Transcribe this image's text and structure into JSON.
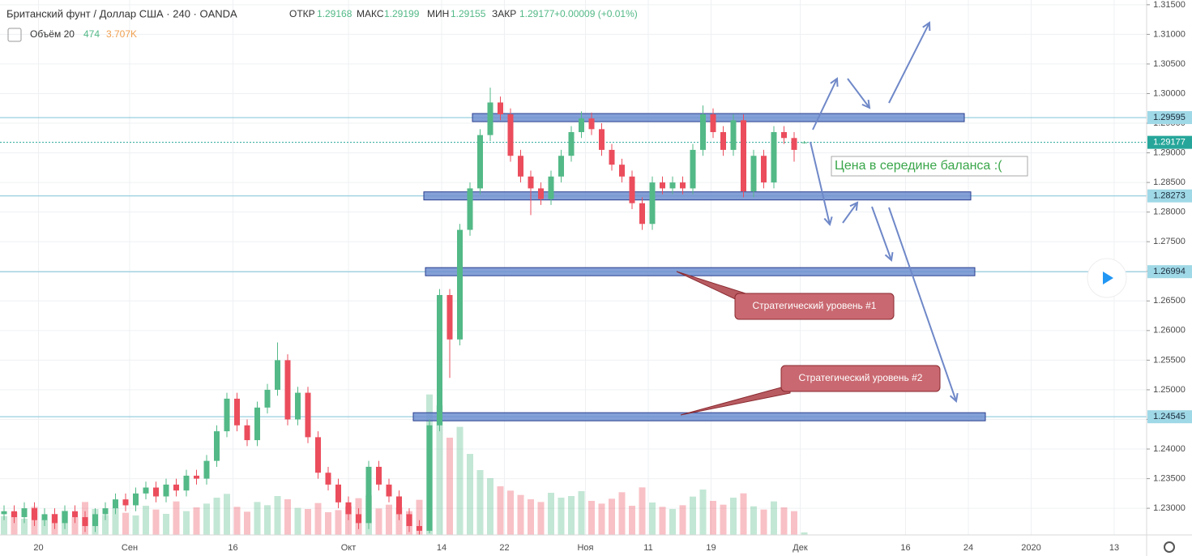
{
  "chart_data": {
    "type": "candlestick",
    "title": "Британский фунт / Доллар США · 240 · OANDA",
    "ohlc_labels": [
      "ОТКР",
      "МАКС",
      "МИН",
      "ЗАКР"
    ],
    "change_label": "+0.00009 (+0.01%)",
    "volume_title": "Объём 20",
    "volume_ma_label": "3.707K",
    "up_color": "#53b987",
    "down_color": "#eb4d5c",
    "xlim": [
      -0.4,
      112.8
    ],
    "xticks": [
      {
        "value": 3.4,
        "label": "20"
      },
      {
        "value": 12.4,
        "label": "Сен"
      },
      {
        "value": 22.6,
        "label": "16"
      },
      {
        "value": 34,
        "label": "Окт"
      },
      {
        "value": 43.2,
        "label": "14"
      },
      {
        "value": 49.4,
        "label": "22"
      },
      {
        "value": 57.4,
        "label": "Ноя"
      },
      {
        "value": 63.6,
        "label": "11"
      },
      {
        "value": 69.8,
        "label": "19"
      },
      {
        "value": 78.6,
        "label": "Дек"
      },
      {
        "value": 89,
        "label": "16"
      },
      {
        "value": 95.2,
        "label": "24"
      },
      {
        "value": 101.4,
        "label": "2020"
      },
      {
        "value": 109.6,
        "label": "13"
      }
    ],
    "ylim": [
      1.2255,
      1.3158
    ],
    "yticks": [
      {
        "value": 1.23,
        "label": "1.23000"
      },
      {
        "value": 1.235,
        "label": "1.23500"
      },
      {
        "value": 1.24,
        "label": "1.24000"
      },
      {
        "value": 1.245,
        "label": "1.24500"
      },
      {
        "value": 1.25,
        "label": "1.25000"
      },
      {
        "value": 1.255,
        "label": "1.25500"
      },
      {
        "value": 1.26,
        "label": "1.26000"
      },
      {
        "value": 1.265,
        "label": "1.26500"
      },
      {
        "value": 1.27,
        "label": "1.27000"
      },
      {
        "value": 1.275,
        "label": "1.27500"
      },
      {
        "value": 1.28,
        "label": "1.28000"
      },
      {
        "value": 1.285,
        "label": "1.28500"
      },
      {
        "value": 1.29,
        "label": "1.29000"
      },
      {
        "value": 1.295,
        "label": "1.29500"
      },
      {
        "value": 1.3,
        "label": "1.30000"
      },
      {
        "value": 1.305,
        "label": "1.30500"
      },
      {
        "value": 1.31,
        "label": "1.31000"
      },
      {
        "value": 1.315,
        "label": "1.31500"
      }
    ],
    "vlim": [
      0,
      30000
    ],
    "levels": [
      1.29595,
      1.28273,
      1.26994,
      1.24545
    ],
    "annotations": [
      "Цена в середине баланса :(",
      "Стратегический уровень #1",
      "Стратегический уровень #2"
    ],
    "open": [
      1.229,
      1.2295,
      1.2285,
      1.23,
      1.228,
      1.229,
      1.2275,
      1.2295,
      1.2285,
      1.227,
      1.229,
      1.23,
      1.2315,
      1.2305,
      1.2325,
      1.2335,
      1.232,
      1.234,
      1.233,
      1.2355,
      1.235,
      1.238,
      1.243,
      1.2485,
      1.244,
      1.2415,
      1.247,
      1.25,
      1.255,
      1.245,
      1.2495,
      1.242,
      1.236,
      1.234,
      1.231,
      1.229,
      1.2275,
      1.237,
      1.234,
      1.232,
      1.229,
      1.227,
      1.2262,
      1.244,
      1.266,
      1.2585,
      1.277,
      1.284,
      1.293,
      1.2985,
      1.2965,
      1.2895,
      1.286,
      1.284,
      1.2822,
      1.286,
      1.2895,
      1.2935,
      1.2958,
      1.294,
      1.2905,
      1.288,
      1.286,
      1.2815,
      1.278,
      1.285,
      1.284,
      1.285,
      1.284,
      1.2905,
      1.2965,
      1.2935,
      1.2905,
      1.2955,
      1.2835,
      1.2895,
      1.285,
      1.2935,
      1.2925,
      1.29168
    ],
    "high": [
      1.2305,
      1.2305,
      1.231,
      1.231,
      1.23,
      1.23,
      1.2305,
      1.2305,
      1.2295,
      1.23,
      1.231,
      1.2325,
      1.2325,
      1.2335,
      1.2345,
      1.2345,
      1.235,
      1.235,
      1.2365,
      1.2365,
      1.239,
      1.244,
      1.2495,
      1.2495,
      1.245,
      1.248,
      1.251,
      1.258,
      1.256,
      1.2505,
      1.2505,
      1.243,
      1.237,
      1.235,
      1.232,
      1.23,
      1.238,
      1.238,
      1.235,
      1.233,
      1.23,
      1.228,
      1.245,
      1.267,
      1.267,
      1.278,
      1.285,
      1.294,
      1.301,
      1.2995,
      1.2975,
      1.2905,
      1.287,
      1.285,
      1.287,
      1.2905,
      1.2945,
      1.297,
      1.2968,
      1.295,
      1.2915,
      1.289,
      1.287,
      1.2825,
      1.286,
      1.286,
      1.286,
      1.286,
      1.2915,
      1.298,
      1.2975,
      1.2945,
      1.2965,
      1.2965,
      1.2905,
      1.2905,
      1.2945,
      1.2945,
      1.2935,
      1.29199
    ],
    "low": [
      1.228,
      1.2275,
      1.2275,
      1.227,
      1.227,
      1.2265,
      1.2265,
      1.2275,
      1.226,
      1.226,
      1.228,
      1.229,
      1.2295,
      1.2295,
      1.2315,
      1.231,
      1.231,
      1.232,
      1.232,
      1.234,
      1.234,
      1.237,
      1.242,
      1.243,
      1.2405,
      1.2405,
      1.246,
      1.249,
      1.244,
      1.244,
      1.241,
      1.235,
      1.233,
      1.23,
      1.228,
      1.2265,
      1.2265,
      1.233,
      1.231,
      1.228,
      1.226,
      1.2255,
      1.2258,
      1.243,
      1.252,
      1.2575,
      1.276,
      1.283,
      1.292,
      1.2955,
      1.2885,
      1.285,
      1.2795,
      1.2812,
      1.2812,
      1.285,
      1.2885,
      1.2925,
      1.293,
      1.2895,
      1.287,
      1.285,
      1.2805,
      1.277,
      1.277,
      1.283,
      1.283,
      1.283,
      1.283,
      1.2895,
      1.2925,
      1.2895,
      1.2895,
      1.2825,
      1.2825,
      1.284,
      1.284,
      1.2915,
      1.2885,
      1.29155
    ],
    "close": [
      1.2295,
      1.2285,
      1.23,
      1.228,
      1.229,
      1.2275,
      1.2295,
      1.2285,
      1.227,
      1.229,
      1.23,
      1.2315,
      1.2305,
      1.2325,
      1.2335,
      1.232,
      1.234,
      1.233,
      1.2355,
      1.235,
      1.238,
      1.243,
      1.2485,
      1.244,
      1.2415,
      1.247,
      1.25,
      1.255,
      1.245,
      1.2495,
      1.242,
      1.236,
      1.234,
      1.231,
      1.229,
      1.2275,
      1.237,
      1.234,
      1.232,
      1.229,
      1.227,
      1.2262,
      1.244,
      1.266,
      1.2585,
      1.277,
      1.284,
      1.293,
      1.2985,
      1.2965,
      1.2895,
      1.286,
      1.284,
      1.2822,
      1.286,
      1.2895,
      1.2935,
      1.2958,
      1.294,
      1.2905,
      1.288,
      1.286,
      1.2815,
      1.278,
      1.285,
      1.284,
      1.285,
      1.284,
      1.2905,
      1.2965,
      1.2935,
      1.2905,
      1.2955,
      1.2835,
      1.2895,
      1.285,
      1.2935,
      1.2925,
      1.2905,
      1.29177
    ],
    "volume": [
      3500,
      4200,
      3000,
      5200,
      2800,
      3900,
      4500,
      3300,
      6100,
      4800,
      3700,
      5000,
      4100,
      3600,
      5400,
      4700,
      3900,
      6200,
      4400,
      5100,
      5800,
      6900,
      7600,
      5200,
      4300,
      6100,
      5500,
      7200,
      6600,
      5000,
      4800,
      5900,
      4200,
      4600,
      5300,
      6800,
      7300,
      4900,
      5600,
      5100,
      4400,
      6500,
      26000,
      24000,
      18000,
      20000,
      15000,
      12000,
      10500,
      9000,
      8200,
      7400,
      6600,
      6100,
      7800,
      6900,
      7200,
      8100,
      6300,
      5800,
      6700,
      7900,
      5400,
      8800,
      6000,
      5200,
      4800,
      5500,
      7100,
      8400,
      6300,
      5600,
      6900,
      7700,
      5300,
      4700,
      6200,
      5100,
      4400,
      474
    ]
  }
}
